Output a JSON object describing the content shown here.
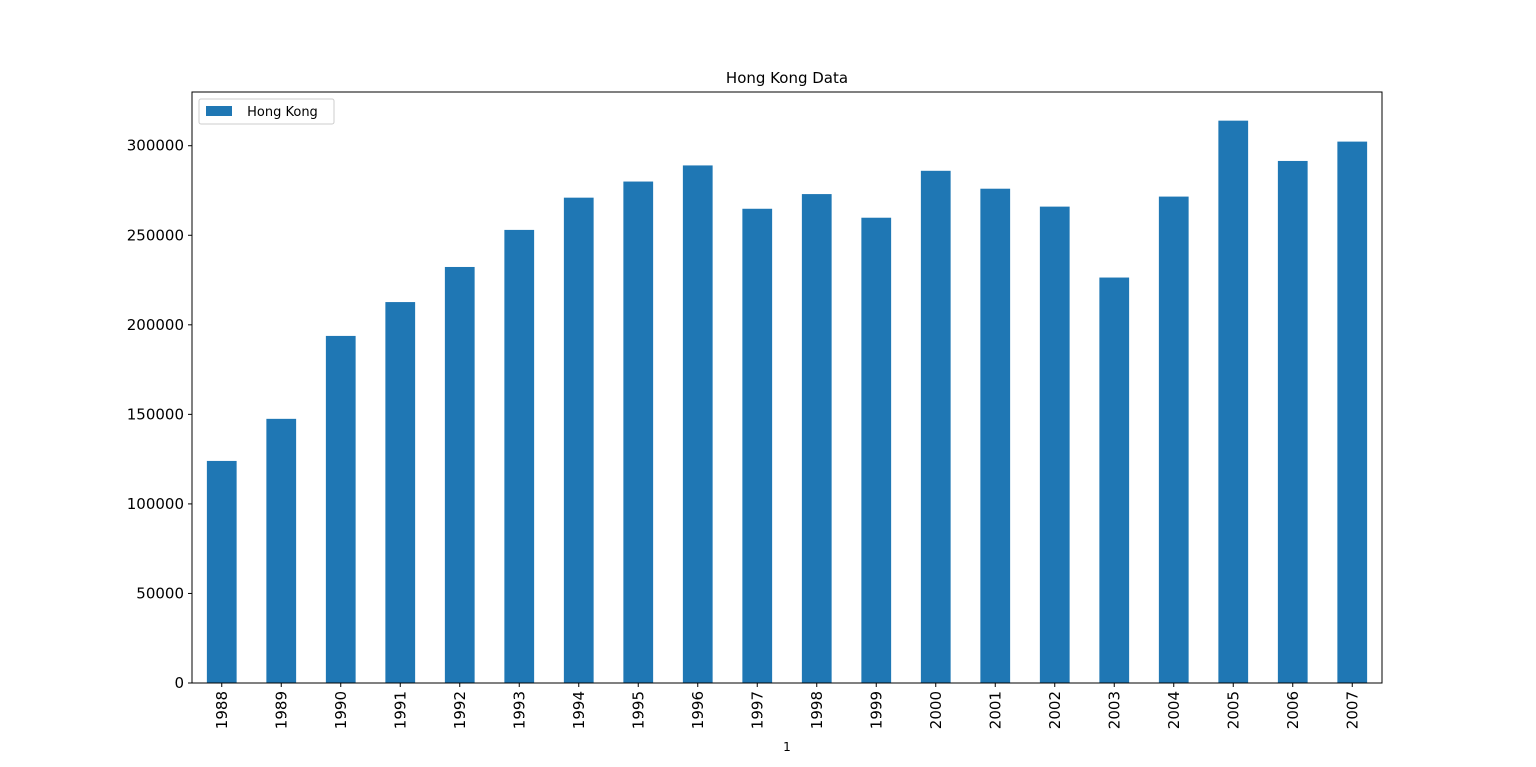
{
  "chart_data": {
    "type": "bar",
    "title": "Hong Kong Data",
    "xlabel": "1",
    "ylabel": "",
    "categories": [
      "1988",
      "1989",
      "1990",
      "1991",
      "1992",
      "1993",
      "1994",
      "1995",
      "1996",
      "1997",
      "1998",
      "1999",
      "2000",
      "2001",
      "2002",
      "2003",
      "2004",
      "2005",
      "2006",
      "2007"
    ],
    "series": [
      {
        "name": " Hong Kong",
        "color": "#1f77b4",
        "values": [
          124000,
          147500,
          193800,
          212700,
          232300,
          253000,
          271000,
          280000,
          289000,
          264800,
          273000,
          259800,
          286000,
          276000,
          266000,
          226400,
          271600,
          314000,
          291500,
          302300
        ]
      }
    ],
    "ylim": [
      0,
      330000
    ],
    "yticks": [
      "0",
      "50000",
      "100000",
      "150000",
      "200000",
      "250000",
      "300000"
    ],
    "grid": false,
    "legend": "top-left"
  }
}
